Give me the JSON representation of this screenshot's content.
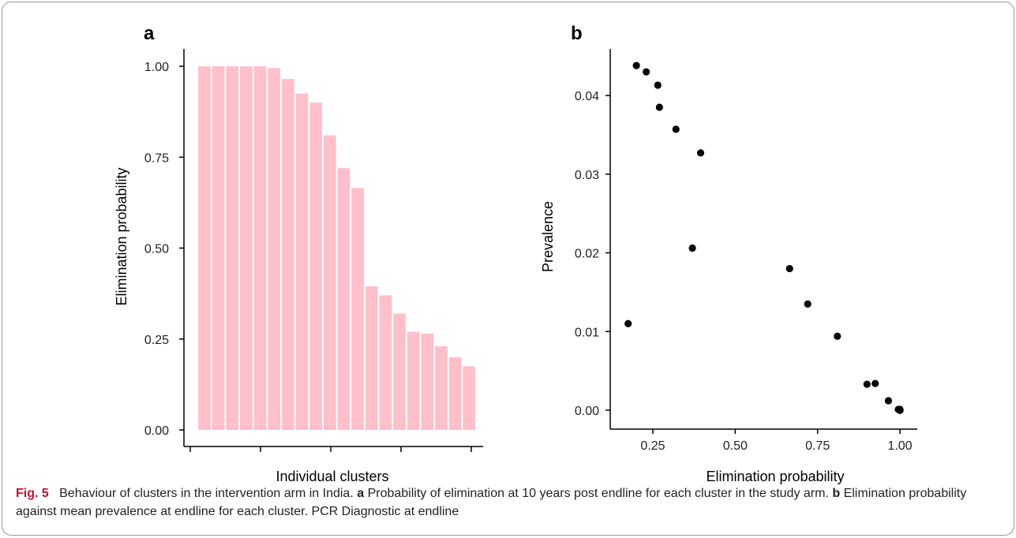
{
  "figure": {
    "panels": [
      {
        "letter": "a"
      },
      {
        "letter": "b"
      }
    ],
    "caption": {
      "lead": "Fig. 5",
      "s1": "Behaviour of clusters in the intervention arm in India.",
      "a": "a",
      "s2": "Probability of elimination at 10 years post endline for each cluster in the study arm.",
      "b": "b",
      "s3": "Elimination probability against mean prevalence at endline for each cluster. PCR Diagnostic at endline"
    }
  },
  "colors": {
    "bar": "#ffc0cb",
    "point": "#000000",
    "caption_lead": "#c8102e"
  },
  "chart_data": [
    {
      "type": "bar",
      "xlabel": "Individual clusters",
      "ylabel": "Elimination probability",
      "ylim": [
        0,
        1
      ],
      "yticks": [
        "0.00",
        "0.25",
        "0.50",
        "0.75",
        "1.00"
      ],
      "values": [
        1.0,
        1.0,
        1.0,
        1.0,
        1.0,
        0.995,
        0.965,
        0.925,
        0.9,
        0.81,
        0.72,
        0.665,
        0.395,
        0.37,
        0.32,
        0.27,
        0.265,
        0.23,
        0.2,
        0.175
      ],
      "grid": false
    },
    {
      "type": "scatter",
      "xlabel": "Elimination probability",
      "ylabel": "Prevalence",
      "xlim": [
        0.15,
        1.05
      ],
      "ylim": [
        -0.002,
        0.046
      ],
      "xticks": [
        "0.25",
        "0.50",
        "0.75",
        "1.00"
      ],
      "yticks": [
        "0.00",
        "0.01",
        "0.02",
        "0.03",
        "0.04"
      ],
      "points": [
        [
          0.175,
          0.011
        ],
        [
          0.2,
          0.0438
        ],
        [
          0.23,
          0.043
        ],
        [
          0.265,
          0.0413
        ],
        [
          0.27,
          0.0385
        ],
        [
          0.32,
          0.0357
        ],
        [
          0.37,
          0.0206
        ],
        [
          0.395,
          0.0327
        ],
        [
          0.665,
          0.018
        ],
        [
          0.72,
          0.0135
        ],
        [
          0.81,
          0.0094
        ],
        [
          0.9,
          0.0033
        ],
        [
          0.925,
          0.0034
        ],
        [
          0.965,
          0.0012
        ],
        [
          0.995,
          0.0001
        ],
        [
          1.0,
          0.0
        ],
        [
          1.0,
          0.0001
        ],
        [
          1.0,
          0.0
        ],
        [
          1.0,
          0.0
        ],
        [
          1.0,
          0.0
        ]
      ],
      "grid": false
    }
  ]
}
